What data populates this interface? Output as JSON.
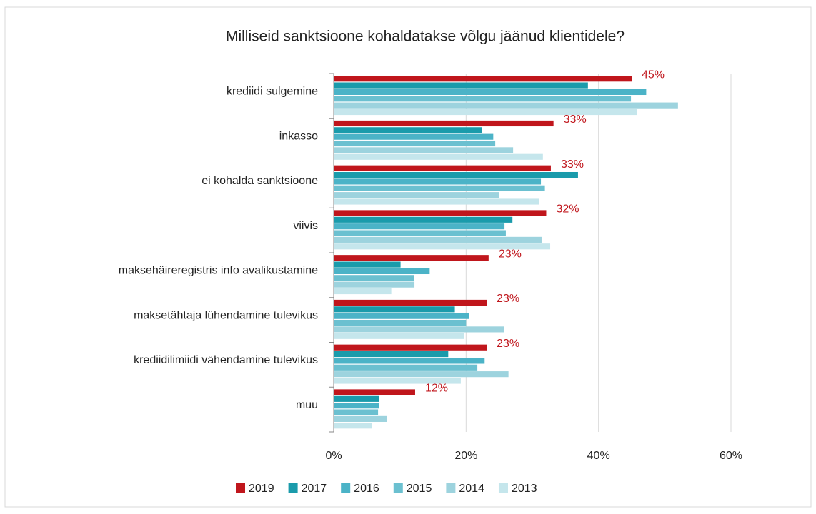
{
  "chart_data": {
    "type": "hbar",
    "title": "Milliseid sanktsioone kohaldatakse võlgu jäänud klientidele?",
    "categories": [
      "krediidi sulgemine",
      "inkasso",
      "ei kohalda sanktsioone",
      "viivis",
      "maksehäireregistris info avalikustamine",
      "maksetähtaja lühendamine tulevikus",
      "krediidilimiidi vähendamine tulevikus",
      "muu"
    ],
    "series": [
      {
        "name": "2019",
        "color": "#c0161c",
        "values": [
          45.0,
          33.2,
          32.8,
          32.1,
          23.4,
          23.1,
          23.1,
          12.3
        ],
        "value_labels": [
          "45%",
          "33%",
          "33%",
          "32%",
          "23%",
          "23%",
          "23%",
          "12%"
        ]
      },
      {
        "name": "2017",
        "color": "#1a9bab",
        "values": [
          38.4,
          22.4,
          36.9,
          27.0,
          10.1,
          18.3,
          17.3,
          6.8
        ]
      },
      {
        "name": "2016",
        "color": "#4bb3c7",
        "values": [
          47.2,
          24.1,
          31.3,
          25.8,
          14.5,
          20.5,
          22.8,
          6.8
        ]
      },
      {
        "name": "2015",
        "color": "#6bc0d0",
        "values": [
          44.9,
          24.4,
          31.9,
          26.0,
          12.1,
          20.0,
          21.7,
          6.7
        ]
      },
      {
        "name": "2014",
        "color": "#9dd3de",
        "values": [
          52.0,
          27.1,
          25.0,
          31.4,
          12.2,
          25.7,
          26.4,
          8.0
        ]
      },
      {
        "name": "2013",
        "color": "#c5e6ec",
        "values": [
          45.8,
          31.6,
          31.0,
          32.7,
          8.7,
          19.7,
          19.2,
          5.8
        ]
      }
    ],
    "xlim": [
      0,
      60
    ],
    "xticks": [
      {
        "value": 0,
        "label": "0%"
      },
      {
        "value": 20,
        "label": "20%"
      },
      {
        "value": 40,
        "label": "40%"
      },
      {
        "value": 60,
        "label": "60%"
      }
    ],
    "grid": true,
    "legend": "bottom"
  }
}
